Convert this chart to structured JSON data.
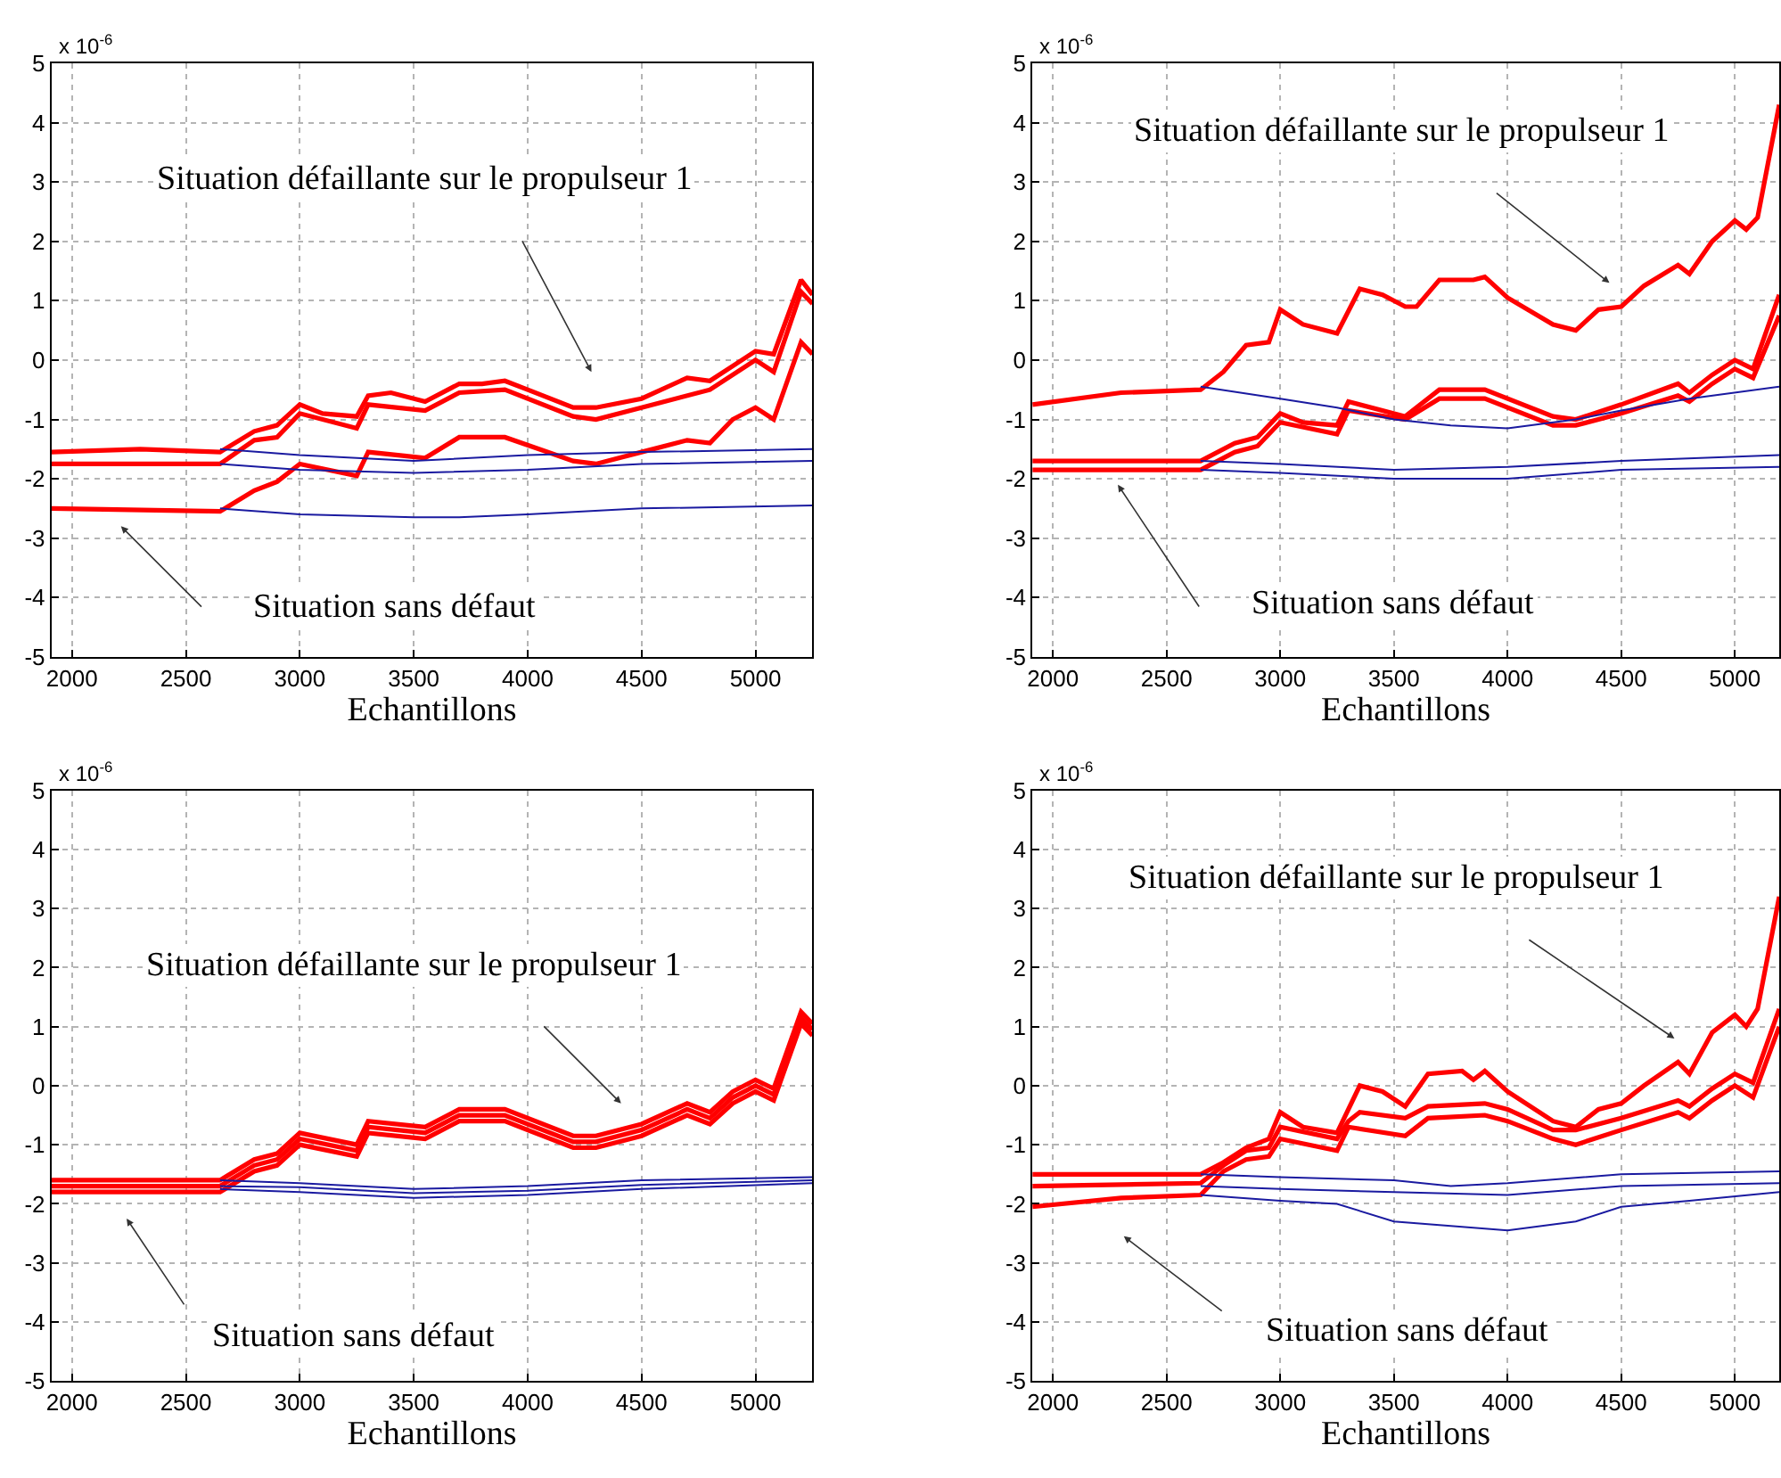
{
  "chart_data": [
    {
      "type": "line",
      "xlabel": "Echantillons",
      "xlim": [
        1910,
        5250
      ],
      "xticks": [
        2000,
        2500,
        3000,
        3500,
        4000,
        4500,
        5000
      ],
      "ylim": [
        -5,
        5
      ],
      "yticks": [
        -5,
        -4,
        -3,
        -2,
        -1,
        0,
        1,
        2,
        3,
        4,
        5
      ],
      "grid": true,
      "legend": false,
      "marker": "none",
      "line_style": "solid",
      "annotations": [
        "Situation défaillante sur le propulseur 1",
        "Situation sans défaut",
        "x 10$^{-6}$"
      ],
      "series": [
        {
          "color": "#ff0000",
          "x": [
            1910,
            2300,
            2650,
            2800,
            2900,
            3000,
            3100,
            3250,
            3300,
            3400,
            3550,
            3700,
            3800,
            3900,
            4000,
            4200,
            4300,
            4500,
            4700,
            4800,
            4900,
            5000,
            5080,
            5200,
            5250
          ],
          "values": [
            -1.55,
            -1.5,
            -1.55,
            -1.2,
            -1.1,
            -0.75,
            -0.9,
            -0.95,
            -0.6,
            -0.55,
            -0.7,
            -0.4,
            -0.4,
            -0.35,
            -0.5,
            -0.8,
            -0.8,
            -0.65,
            -0.3,
            -0.35,
            -0.1,
            0.15,
            0.1,
            1.35,
            1.1
          ]
        },
        {
          "color": "#ff0000",
          "x": [
            1910,
            2650,
            2800,
            2900,
            3000,
            3250,
            3300,
            3550,
            3700,
            3900,
            4200,
            4300,
            4500,
            4800,
            5000,
            5080,
            5200,
            5250
          ],
          "values": [
            -1.75,
            -1.75,
            -1.35,
            -1.3,
            -0.9,
            -1.15,
            -0.75,
            -0.85,
            -0.55,
            -0.5,
            -0.95,
            -1.0,
            -0.8,
            -0.5,
            0.0,
            -0.2,
            1.15,
            0.95
          ]
        },
        {
          "color": "#ff0000",
          "x": [
            1910,
            2650,
            2800,
            2900,
            3000,
            3250,
            3300,
            3550,
            3700,
            3900,
            4200,
            4300,
            4500,
            4700,
            4800,
            4900,
            5000,
            5080,
            5200,
            5250
          ],
          "values": [
            -2.5,
            -2.55,
            -2.2,
            -2.05,
            -1.75,
            -1.95,
            -1.55,
            -1.65,
            -1.3,
            -1.3,
            -1.7,
            -1.75,
            -1.55,
            -1.35,
            -1.4,
            -1.0,
            -0.8,
            -1.0,
            0.3,
            0.1
          ]
        },
        {
          "color": "#1a1aa0",
          "x": [
            2650,
            3000,
            3500,
            4000,
            4500,
            5250
          ],
          "values": [
            -1.5,
            -1.6,
            -1.7,
            -1.6,
            -1.55,
            -1.5
          ]
        },
        {
          "color": "#1a1aa0",
          "x": [
            2650,
            3000,
            3500,
            4000,
            4500,
            5250
          ],
          "values": [
            -1.75,
            -1.85,
            -1.9,
            -1.85,
            -1.75,
            -1.7
          ]
        },
        {
          "color": "#1a1aa0",
          "x": [
            2650,
            3000,
            3500,
            3700,
            4000,
            4500,
            5250
          ],
          "values": [
            -2.5,
            -2.6,
            -2.65,
            -2.65,
            -2.6,
            -2.5,
            -2.45
          ]
        }
      ]
    },
    {
      "type": "line",
      "xlabel": "Echantillons",
      "xlim": [
        1910,
        5195
      ],
      "xticks": [
        2000,
        2500,
        3000,
        3500,
        4000,
        4500,
        5000
      ],
      "ylim": [
        -5,
        5
      ],
      "yticks": [
        -5,
        -4,
        -3,
        -2,
        -1,
        0,
        1,
        2,
        3,
        4,
        5
      ],
      "grid": true,
      "legend": false,
      "marker": "none",
      "line_style": "solid",
      "annotations": [
        "Situation défaillante sur le propulseur 1",
        "Situation sans défaut",
        "x 10$^{-6}$"
      ],
      "series": [
        {
          "color": "#ff0000",
          "x": [
            1910,
            2300,
            2650,
            2750,
            2850,
            2950,
            3000,
            3100,
            3250,
            3350,
            3450,
            3550,
            3600,
            3700,
            3850,
            3900,
            4000,
            4200,
            4300,
            4400,
            4500,
            4600,
            4750,
            4800,
            4900,
            5000,
            5050,
            5100,
            5195
          ],
          "values": [
            -0.75,
            -0.55,
            -0.5,
            -0.2,
            0.25,
            0.3,
            0.85,
            0.6,
            0.45,
            1.2,
            1.1,
            0.9,
            0.9,
            1.35,
            1.35,
            1.4,
            1.05,
            0.6,
            0.5,
            0.85,
            0.9,
            1.25,
            1.6,
            1.45,
            2.0,
            2.35,
            2.2,
            2.4,
            4.3
          ]
        },
        {
          "color": "#ff0000",
          "x": [
            1910,
            2650,
            2800,
            2900,
            3000,
            3100,
            3250,
            3300,
            3550,
            3700,
            3900,
            4200,
            4300,
            4500,
            4750,
            4800,
            4900,
            5000,
            5080,
            5195
          ],
          "values": [
            -1.7,
            -1.7,
            -1.4,
            -1.3,
            -0.9,
            -1.05,
            -1.1,
            -0.7,
            -0.95,
            -0.5,
            -0.5,
            -0.95,
            -1.0,
            -0.75,
            -0.4,
            -0.55,
            -0.25,
            0.0,
            -0.15,
            1.1
          ]
        },
        {
          "color": "#ff0000",
          "x": [
            1910,
            2650,
            2800,
            2900,
            3000,
            3250,
            3300,
            3550,
            3700,
            3900,
            4200,
            4300,
            4500,
            4750,
            4800,
            4900,
            5000,
            5080,
            5195
          ],
          "values": [
            -1.85,
            -1.85,
            -1.55,
            -1.45,
            -1.05,
            -1.25,
            -0.85,
            -1.0,
            -0.65,
            -0.65,
            -1.1,
            -1.1,
            -0.9,
            -0.6,
            -0.7,
            -0.4,
            -0.15,
            -0.3,
            0.75
          ]
        },
        {
          "color": "#1a1aa0",
          "x": [
            2650,
            3000,
            3250,
            3500,
            3750,
            4000,
            4300,
            4500,
            4800,
            5195
          ],
          "values": [
            -0.45,
            -0.65,
            -0.8,
            -1.0,
            -1.1,
            -1.15,
            -1.0,
            -0.85,
            -0.65,
            -0.45
          ]
        },
        {
          "color": "#1a1aa0",
          "x": [
            2650,
            3000,
            3500,
            4000,
            4500,
            5195
          ],
          "values": [
            -1.7,
            -1.75,
            -1.85,
            -1.8,
            -1.7,
            -1.6
          ]
        },
        {
          "color": "#1a1aa0",
          "x": [
            2650,
            3000,
            3500,
            4000,
            4500,
            5195
          ],
          "values": [
            -1.85,
            -1.9,
            -2.0,
            -2.0,
            -1.85,
            -1.8
          ]
        }
      ]
    },
    {
      "type": "line",
      "xlabel": "Echantillons",
      "xlim": [
        1910,
        5250
      ],
      "xticks": [
        2000,
        2500,
        3000,
        3500,
        4000,
        4500,
        5000
      ],
      "ylim": [
        -5,
        5
      ],
      "yticks": [
        -5,
        -4,
        -3,
        -2,
        -1,
        0,
        1,
        2,
        3,
        4,
        5
      ],
      "grid": true,
      "legend": false,
      "marker": "none",
      "line_style": "solid",
      "annotations": [
        "Situation défaillante sur le propulseur 1",
        "Situation sans défaut",
        "x 10$^{-6}$"
      ],
      "series": [
        {
          "color": "#ff0000",
          "x": [
            1910,
            2650,
            2800,
            2900,
            3000,
            3250,
            3300,
            3550,
            3700,
            3900,
            4200,
            4300,
            4500,
            4700,
            4800,
            4900,
            5000,
            5080,
            5200,
            5250
          ],
          "values": [
            -1.6,
            -1.6,
            -1.25,
            -1.15,
            -0.8,
            -1.0,
            -0.6,
            -0.7,
            -0.4,
            -0.4,
            -0.85,
            -0.85,
            -0.65,
            -0.3,
            -0.45,
            -0.1,
            0.1,
            -0.05,
            1.25,
            1.05
          ]
        },
        {
          "color": "#ff0000",
          "x": [
            1910,
            2650,
            2800,
            2900,
            3000,
            3250,
            3300,
            3550,
            3700,
            3900,
            4200,
            4300,
            4500,
            4700,
            4800,
            4900,
            5000,
            5080,
            5200,
            5250
          ],
          "values": [
            -1.7,
            -1.7,
            -1.35,
            -1.25,
            -0.9,
            -1.1,
            -0.7,
            -0.8,
            -0.5,
            -0.5,
            -0.95,
            -0.95,
            -0.75,
            -0.4,
            -0.55,
            -0.2,
            0.0,
            -0.15,
            1.15,
            0.95
          ]
        },
        {
          "color": "#ff0000",
          "x": [
            1910,
            2650,
            2800,
            2900,
            3000,
            3250,
            3300,
            3550,
            3700,
            3900,
            4200,
            4300,
            4500,
            4700,
            4800,
            4900,
            5000,
            5080,
            5200,
            5250
          ],
          "values": [
            -1.8,
            -1.8,
            -1.45,
            -1.35,
            -1.0,
            -1.2,
            -0.8,
            -0.9,
            -0.6,
            -0.6,
            -1.05,
            -1.05,
            -0.85,
            -0.5,
            -0.65,
            -0.3,
            -0.1,
            -0.25,
            1.05,
            0.85
          ]
        },
        {
          "color": "#1a1aa0",
          "x": [
            2650,
            3000,
            3500,
            4000,
            4500,
            5250
          ],
          "values": [
            -1.6,
            -1.65,
            -1.75,
            -1.7,
            -1.6,
            -1.55
          ]
        },
        {
          "color": "#1a1aa0",
          "x": [
            2650,
            3000,
            3500,
            4000,
            4500,
            5250
          ],
          "values": [
            -1.7,
            -1.72,
            -1.82,
            -1.78,
            -1.68,
            -1.6
          ]
        },
        {
          "color": "#1a1aa0",
          "x": [
            2650,
            3000,
            3500,
            4000,
            4500,
            5250
          ],
          "values": [
            -1.75,
            -1.8,
            -1.9,
            -1.85,
            -1.75,
            -1.65
          ]
        }
      ]
    },
    {
      "type": "line",
      "xlabel": "Echantillons",
      "xlim": [
        1910,
        5195
      ],
      "xticks": [
        2000,
        2500,
        3000,
        3500,
        4000,
        4500,
        5000
      ],
      "ylim": [
        -5,
        5
      ],
      "yticks": [
        -5,
        -4,
        -3,
        -2,
        -1,
        0,
        1,
        2,
        3,
        4,
        5
      ],
      "grid": true,
      "legend": false,
      "marker": "none",
      "line_style": "solid",
      "annotations": [
        "Situation défaillante sur le propulseur 1",
        "Situation sans défaut",
        "x 10$^{-6}$"
      ],
      "series": [
        {
          "color": "#ff0000",
          "x": [
            1910,
            2650,
            2750,
            2850,
            2950,
            3000,
            3100,
            3250,
            3350,
            3450,
            3550,
            3650,
            3800,
            3850,
            3900,
            4000,
            4200,
            4300,
            4400,
            4500,
            4600,
            4750,
            4800,
            4900,
            5000,
            5050,
            5100,
            5195
          ],
          "values": [
            -1.5,
            -1.5,
            -1.3,
            -1.05,
            -0.9,
            -0.45,
            -0.7,
            -0.8,
            0.0,
            -0.1,
            -0.35,
            0.2,
            0.25,
            0.1,
            0.25,
            -0.1,
            -0.6,
            -0.7,
            -0.4,
            -0.3,
            0.0,
            0.4,
            0.2,
            0.9,
            1.2,
            1.0,
            1.3,
            3.2
          ]
        },
        {
          "color": "#ff0000",
          "x": [
            1910,
            2650,
            2750,
            2850,
            2950,
            3000,
            3250,
            3300,
            3350,
            3550,
            3650,
            3900,
            4000,
            4200,
            4300,
            4500,
            4750,
            4800,
            4900,
            5000,
            5080,
            5195
          ],
          "values": [
            -1.7,
            -1.65,
            -1.35,
            -1.1,
            -1.05,
            -0.7,
            -0.9,
            -0.6,
            -0.45,
            -0.55,
            -0.35,
            -0.3,
            -0.4,
            -0.75,
            -0.75,
            -0.55,
            -0.25,
            -0.35,
            -0.05,
            0.2,
            0.05,
            1.3
          ]
        },
        {
          "color": "#ff0000",
          "x": [
            1910,
            2300,
            2650,
            2750,
            2850,
            2950,
            3000,
            3250,
            3300,
            3550,
            3650,
            3900,
            4000,
            4200,
            4300,
            4500,
            4750,
            4800,
            4900,
            5000,
            5080,
            5195
          ],
          "values": [
            -2.05,
            -1.9,
            -1.85,
            -1.45,
            -1.25,
            -1.2,
            -0.9,
            -1.1,
            -0.7,
            -0.85,
            -0.55,
            -0.5,
            -0.6,
            -0.9,
            -1.0,
            -0.75,
            -0.45,
            -0.55,
            -0.25,
            0.0,
            -0.2,
            1.0
          ]
        },
        {
          "color": "#1a1aa0",
          "x": [
            2650,
            3000,
            3500,
            3750,
            4000,
            4500,
            5195
          ],
          "values": [
            -1.5,
            -1.55,
            -1.6,
            -1.7,
            -1.65,
            -1.5,
            -1.45
          ]
        },
        {
          "color": "#1a1aa0",
          "x": [
            2650,
            3000,
            3500,
            4000,
            4500,
            5195
          ],
          "values": [
            -1.7,
            -1.75,
            -1.8,
            -1.85,
            -1.7,
            -1.65
          ]
        },
        {
          "color": "#1a1aa0",
          "x": [
            2650,
            3000,
            3250,
            3500,
            4000,
            4300,
            4500,
            4800,
            5195
          ],
          "values": [
            -1.85,
            -1.95,
            -2.0,
            -2.3,
            -2.45,
            -2.3,
            -2.05,
            -1.95,
            -1.8
          ]
        }
      ]
    }
  ]
}
